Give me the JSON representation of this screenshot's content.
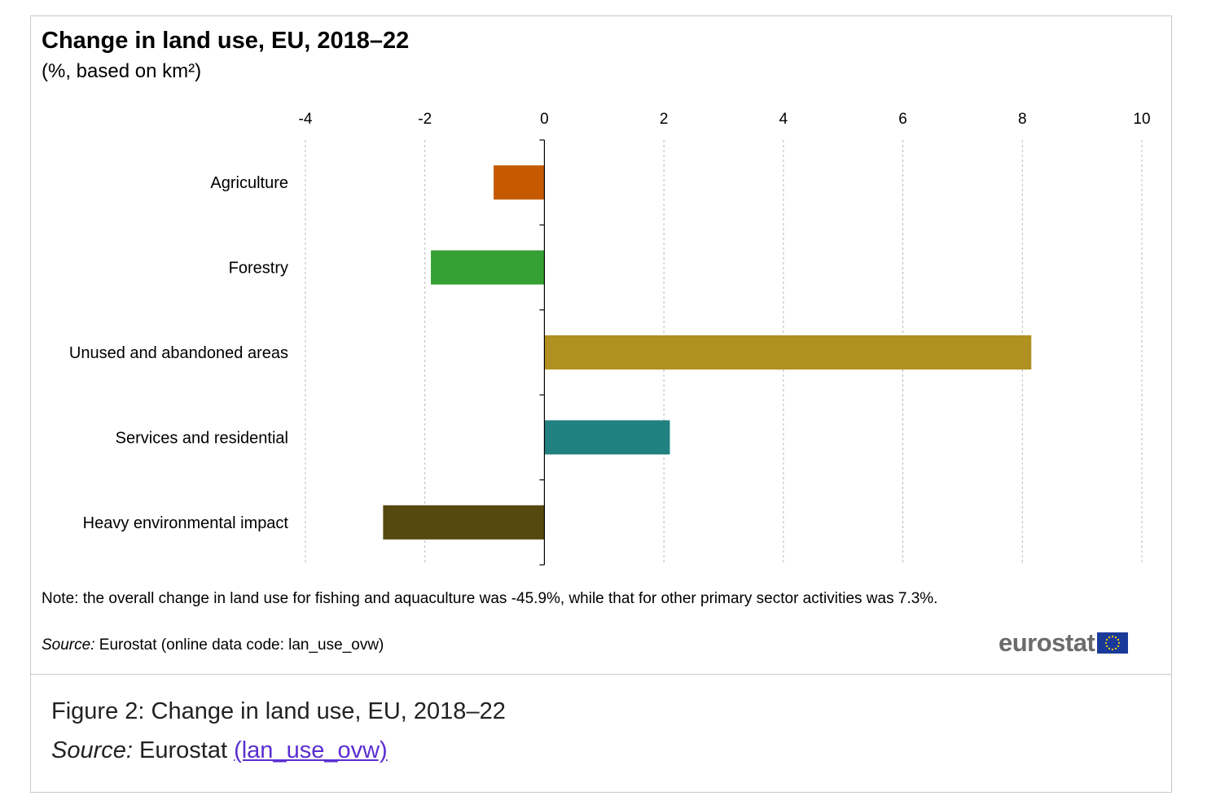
{
  "chart_data": {
    "type": "bar",
    "orientation": "horizontal",
    "title": "Change in land use, EU, 2018–22",
    "subtitle": "(%, based on km²)",
    "categories": [
      "Agriculture",
      "Forestry",
      "Unused and abandoned areas",
      "Services and residential",
      "Heavy environmental impact"
    ],
    "values": [
      -0.85,
      -1.9,
      8.15,
      2.1,
      -2.7
    ],
    "colors": [
      "#c55a00",
      "#35a033",
      "#b09020",
      "#218080",
      "#574810"
    ],
    "xlim": [
      -4,
      10
    ],
    "ticks": [
      -4,
      -2,
      0,
      2,
      4,
      6,
      8,
      10
    ],
    "tick_labels": [
      "-4",
      "-2",
      "0",
      "2",
      "4",
      "6",
      "8",
      "10"
    ],
    "xlabel": "",
    "ylabel": "",
    "grid": true,
    "axis_position": "top"
  },
  "note": {
    "text": "Note: the overall change in land use for fishing and aquaculture was -45.9%, while that for other primary sector activities was 7.3%.",
    "source_label": "Source:",
    "source_text": "Eurostat (online data code: lan_use_ovw)"
  },
  "logo": {
    "text": "eurostat"
  },
  "caption": {
    "figure_text": "Figure 2: Change in land use, EU, 2018–22",
    "source_label": "Source:",
    "source_text": "Eurostat",
    "link_text": "(lan_use_ovw)"
  }
}
